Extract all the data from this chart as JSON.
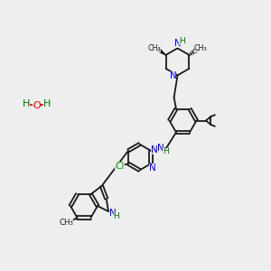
{
  "background_color": "#eeeeee",
  "bond_color": "#1a1a1a",
  "nitrogen_color": "#0000ee",
  "oxygen_color": "#dd0000",
  "chlorine_color": "#00aa00",
  "hydrogen_color": "#007700",
  "figsize": [
    3.0,
    3.0
  ],
  "dpi": 100,
  "xlim": [
    0,
    10
  ],
  "ylim": [
    0,
    10
  ]
}
